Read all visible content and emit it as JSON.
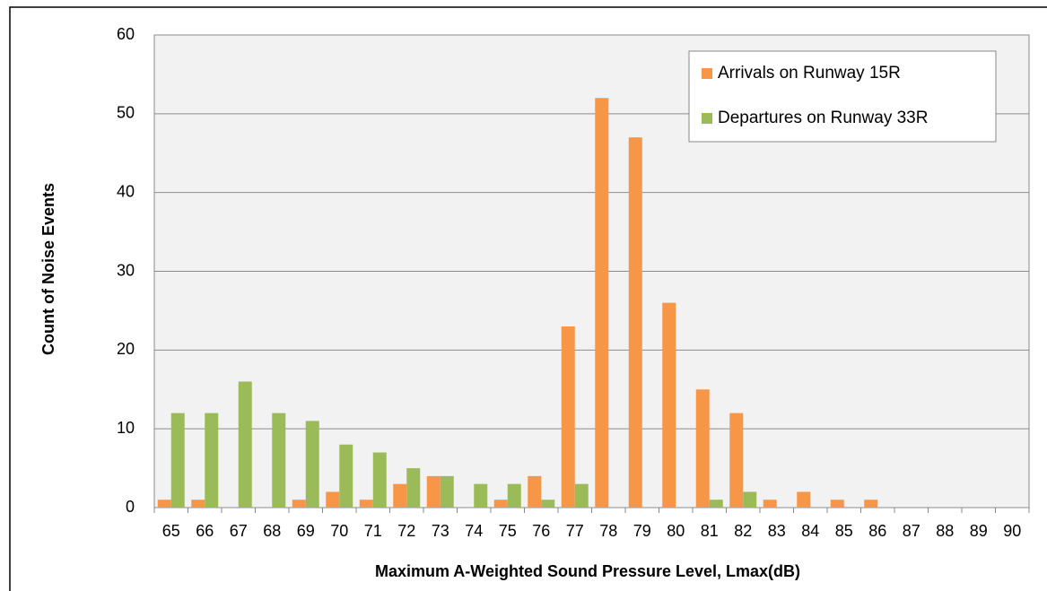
{
  "chart_data": {
    "type": "bar",
    "x_label": "Maximum A-Weighted Sound Pressure Level, Lmax(dB)",
    "y_label": "Count  of Noise Events",
    "categories": [
      "65",
      "66",
      "67",
      "68",
      "69",
      "70",
      "71",
      "72",
      "73",
      "74",
      "75",
      "76",
      "77",
      "78",
      "79",
      "80",
      "81",
      "82",
      "83",
      "84",
      "85",
      "86",
      "87",
      "88",
      "89",
      "90"
    ],
    "series": [
      {
        "name": "Arrivals on Runway 15R",
        "color": "#f79646",
        "values": [
          1,
          1,
          0,
          0,
          1,
          2,
          1,
          3,
          4,
          0,
          1,
          4,
          23,
          52,
          47,
          26,
          15,
          12,
          1,
          2,
          1,
          1,
          0,
          0,
          0,
          0
        ]
      },
      {
        "name": "Departures on Runway 33R",
        "color": "#9bbb59",
        "values": [
          12,
          12,
          16,
          12,
          11,
          8,
          7,
          5,
          4,
          3,
          3,
          1,
          3,
          0,
          0,
          0,
          1,
          2,
          0,
          0,
          0,
          0,
          0,
          0,
          0,
          0
        ]
      }
    ],
    "ylim": [
      0,
      60
    ],
    "yticks": [
      0,
      10,
      20,
      30,
      40,
      50,
      60
    ],
    "grid": true,
    "legend": "top-right"
  }
}
